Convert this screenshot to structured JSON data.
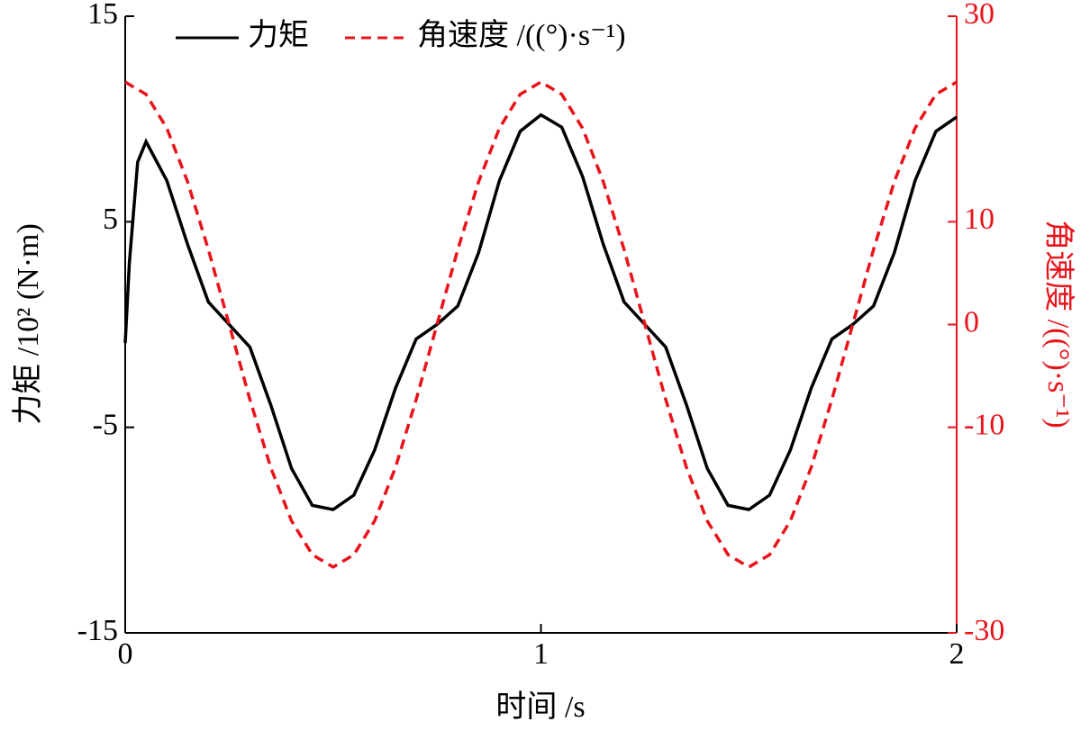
{
  "chart_data": {
    "type": "line",
    "xlabel": "时间 /s",
    "ylabel": "力矩 /10² (N·m)",
    "y2label": "角速度 /((°)·s⁻¹)",
    "xlim": [
      0,
      2
    ],
    "xticks": [
      0,
      1,
      2
    ],
    "ylim": [
      -15,
      15
    ],
    "yticks": [
      -15,
      -5,
      5,
      15
    ],
    "y2lim": [
      -30,
      30
    ],
    "y2ticks": [
      -30,
      -10,
      0,
      10,
      30
    ],
    "legend": "upper left",
    "series": [
      {
        "name": "力矩",
        "color": "#000000",
        "dash": false,
        "x": [
          0,
          0.01,
          0.03,
          0.05,
          0.1,
          0.15,
          0.2,
          0.25,
          0.3,
          0.35,
          0.4,
          0.45,
          0.5,
          0.55,
          0.6,
          0.65,
          0.7,
          0.75,
          0.8,
          0.85,
          0.9,
          0.95,
          1,
          1.05,
          1.1,
          1.15,
          1.2,
          1.25,
          1.3,
          1.35,
          1.4,
          1.45,
          1.5,
          1.55,
          1.6,
          1.65,
          1.7,
          1.75,
          1.8,
          1.85,
          1.9,
          1.95,
          2
        ],
        "values": [
          -0.9,
          3,
          7.9,
          8.9,
          7.0,
          3.9,
          1.1,
          0,
          -1.1,
          -3.9,
          -7.0,
          -8.8,
          -9.0,
          -8.3,
          -6.1,
          -3.1,
          -0.7,
          0,
          0.9,
          3.5,
          7.0,
          9.4,
          10.2,
          9.6,
          7.2,
          3.9,
          1.1,
          0,
          -1.1,
          -3.9,
          -7.0,
          -8.8,
          -9.0,
          -8.3,
          -6.1,
          -3.1,
          -0.7,
          0,
          0.9,
          3.5,
          7.0,
          9.4,
          10.1
        ]
      },
      {
        "name": "角速度 /((°)·s⁻¹)",
        "color": "#e8141b",
        "dash": true,
        "axis": "y2",
        "x": [
          0,
          0.05,
          0.1,
          0.15,
          0.2,
          0.25,
          0.3,
          0.35,
          0.4,
          0.45,
          0.5,
          0.55,
          0.6,
          0.65,
          0.7,
          0.75,
          0.8,
          0.85,
          0.9,
          0.95,
          1,
          1.05,
          1.1,
          1.15,
          1.2,
          1.25,
          1.3,
          1.35,
          1.4,
          1.45,
          1.5,
          1.55,
          1.6,
          1.65,
          1.7,
          1.75,
          1.8,
          1.85,
          1.9,
          1.95,
          2
        ],
        "values": [
          23.6,
          22.4,
          19.1,
          13.9,
          7.3,
          0,
          -7.3,
          -13.9,
          -19.1,
          -22.4,
          -23.6,
          -22.4,
          -19.1,
          -13.9,
          -7.3,
          0,
          7.3,
          13.9,
          19.1,
          22.4,
          23.6,
          22.4,
          19.1,
          13.9,
          7.3,
          0,
          -7.3,
          -13.9,
          -19.1,
          -22.4,
          -23.6,
          -22.4,
          -19.1,
          -13.9,
          -7.3,
          0,
          7.3,
          13.9,
          19.1,
          22.4,
          23.6
        ]
      }
    ]
  }
}
